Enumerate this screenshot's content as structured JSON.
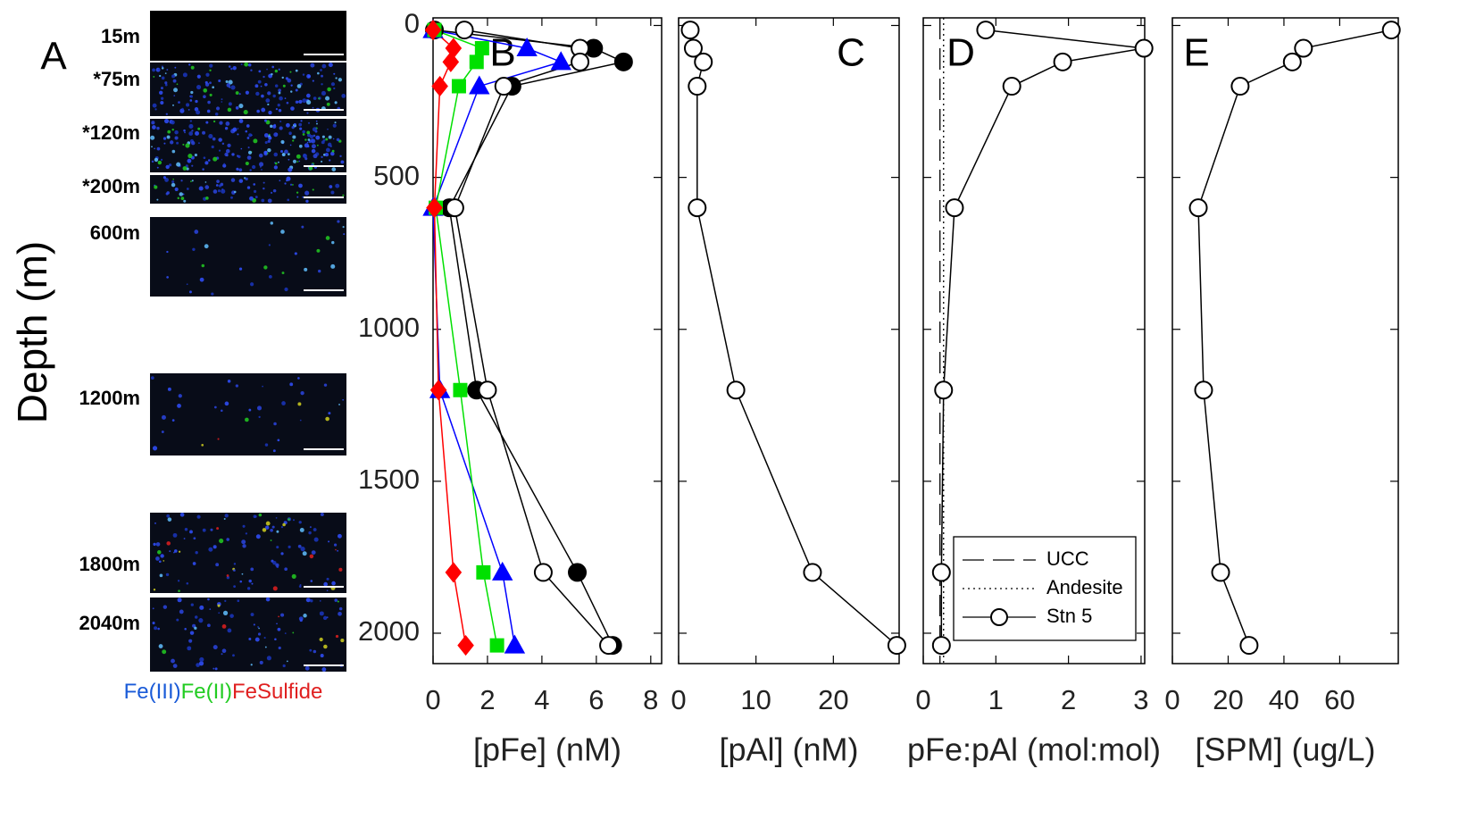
{
  "panel_a": {
    "label": "A",
    "images": [
      {
        "depth_label": "15m"
      },
      {
        "depth_label": "*75m"
      },
      {
        "depth_label": "*120m"
      },
      {
        "depth_label": "*200m"
      },
      {
        "depth_label": "600m"
      },
      {
        "depth_label": "1200m"
      },
      {
        "depth_label": "1800m"
      },
      {
        "depth_label": "2040m"
      }
    ],
    "legend": [
      {
        "text": "Fe(III)",
        "color": "#1a5bd8"
      },
      {
        "text": "Fe(II)",
        "color": "#22cc22"
      },
      {
        "text": "FeSulfide",
        "color": "#e02020"
      }
    ]
  },
  "chart_data": [
    {
      "type": "line",
      "panel_label": "B",
      "x_label": "[pFe] (nM)",
      "y_label": "Depth (m)",
      "y": [
        15,
        75,
        120,
        200,
        600,
        1200,
        1800,
        2040
      ],
      "ylim": [
        -25,
        2100
      ],
      "yticks": [
        0,
        500,
        1000,
        1500,
        2000
      ],
      "y_reversed": true,
      "xlim": [
        0,
        8.4
      ],
      "xticks": [
        0,
        2,
        4,
        6,
        8
      ],
      "series": [
        {
          "color": "#000000",
          "fill": "#000000",
          "marker": "circle",
          "values": [
            0.05,
            5.9,
            7.0,
            2.9,
            0.6,
            1.6,
            5.3,
            6.6
          ]
        },
        {
          "color": "#000000",
          "fill": "#ffffff",
          "marker": "circle",
          "values": [
            1.15,
            5.4,
            5.4,
            2.6,
            0.8,
            2.0,
            4.05,
            6.45
          ]
        },
        {
          "color": "#0000ff",
          "fill": "#0000ff",
          "marker": "triangle",
          "values": [
            0.0,
            3.45,
            4.7,
            1.7,
            0.0,
            0.25,
            2.55,
            3.0
          ]
        },
        {
          "color": "#00e000",
          "fill": "#00e000",
          "marker": "square",
          "values": [
            0.05,
            1.8,
            1.6,
            0.95,
            0.1,
            1.0,
            1.85,
            2.35
          ]
        },
        {
          "color": "#ff0000",
          "fill": "#ff0000",
          "marker": "diamond",
          "values": [
            0.0,
            0.75,
            0.65,
            0.25,
            0.05,
            0.2,
            0.75,
            1.2
          ]
        }
      ]
    },
    {
      "type": "line",
      "panel_label": "C",
      "x_label": "[pAl] (nM)",
      "y": [
        15,
        75,
        120,
        200,
        600,
        1200,
        1800,
        2040
      ],
      "ylim": [
        -25,
        2100
      ],
      "yticks": [
        0,
        500,
        1000,
        1500,
        2000
      ],
      "y_reversed": true,
      "xlim": [
        0,
        28.5
      ],
      "xticks": [
        0,
        10,
        20
      ],
      "series": [
        {
          "color": "#000000",
          "fill": "#ffffff",
          "marker": "circle",
          "values": [
            1.5,
            1.9,
            3.2,
            2.4,
            2.4,
            7.4,
            17.3,
            28.2
          ]
        }
      ]
    },
    {
      "type": "line",
      "panel_label": "D",
      "x_label": "pFe:pAl (mol:mol)",
      "y": [
        15,
        75,
        120,
        200,
        600,
        1200,
        1800,
        2040
      ],
      "ylim": [
        -25,
        2100
      ],
      "yticks": [
        0,
        500,
        1000,
        1500,
        2000
      ],
      "y_reversed": true,
      "xlim": [
        0,
        3.05
      ],
      "xticks": [
        0,
        1,
        2,
        3
      ],
      "reference_lines": [
        {
          "name": "UCC",
          "value": 0.23,
          "style": "dashed"
        },
        {
          "name": "Andesite",
          "value": 0.28,
          "style": "dotted"
        }
      ],
      "series": [
        {
          "name": "Stn 5",
          "color": "#000000",
          "fill": "#ffffff",
          "marker": "circle",
          "values": [
            0.86,
            3.04,
            1.92,
            1.22,
            0.43,
            0.28,
            0.25,
            0.25
          ]
        }
      ],
      "legend": "lower right"
    },
    {
      "type": "line",
      "panel_label": "E",
      "x_label": "[SPM] (ug/L)",
      "y": [
        15,
        75,
        120,
        200,
        600,
        1200,
        1800,
        2040
      ],
      "ylim": [
        -25,
        2100
      ],
      "yticks": [
        0,
        500,
        1000,
        1500,
        2000
      ],
      "y_reversed": true,
      "xlim": [
        0,
        81
      ],
      "xticks": [
        0,
        20,
        40,
        60
      ],
      "series": [
        {
          "color": "#000000",
          "fill": "#ffffff",
          "marker": "circle",
          "values": [
            78.5,
            47,
            43,
            24.3,
            9.3,
            11.2,
            17.3,
            27.5
          ]
        }
      ]
    }
  ]
}
